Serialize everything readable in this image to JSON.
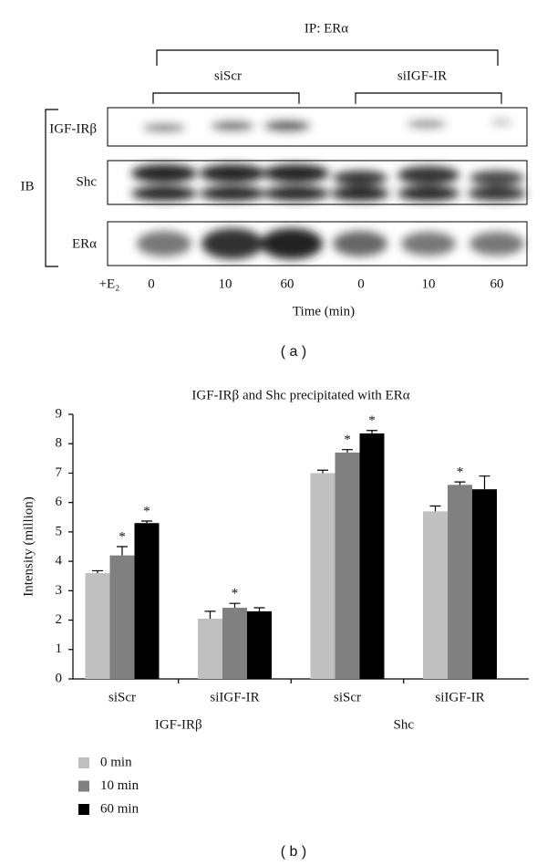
{
  "blot": {
    "ip_label": "IP: ERα",
    "groups": [
      "siScr",
      "siIGF-IR"
    ],
    "ib_label": "IB",
    "rows": [
      "IGF-IRβ",
      "Shc",
      "ERα"
    ],
    "treatment_label": "+E₂",
    "lanes": [
      "0",
      "10",
      "60",
      "0",
      "10",
      "60"
    ],
    "x_label": "Time (min)",
    "panel_label": "( a )"
  },
  "chart_data": {
    "type": "bar",
    "title": "IGF-IRβ and Shc precipitated with ERα",
    "panel_label": "( b )",
    "y_label": "Intensity (million)",
    "categories": [
      "siScr",
      "siIGF-IR",
      "siScr",
      "siIGF-IR"
    ],
    "group_labels": [
      "IGF-IRβ",
      "Shc"
    ],
    "series": [
      {
        "name": "0 min",
        "color": "#c0c0c0",
        "values": [
          3.6,
          2.05,
          7.0,
          5.7
        ],
        "errors": [
          0.08,
          0.25,
          0.1,
          0.18
        ],
        "significance_labels": [
          null,
          null,
          null,
          null
        ]
      },
      {
        "name": "10 min",
        "color": "#808080",
        "values": [
          4.2,
          2.42,
          7.7,
          6.6
        ],
        "errors": [
          0.3,
          0.15,
          0.1,
          0.1
        ],
        "significance_labels": [
          "*",
          "*",
          "*",
          "*"
        ]
      },
      {
        "name": "60 min",
        "color": "#000000",
        "values": [
          5.3,
          2.3,
          8.35,
          6.45
        ],
        "errors": [
          0.07,
          0.12,
          0.1,
          0.45
        ],
        "significance_labels": [
          "*",
          null,
          "*",
          null
        ]
      }
    ],
    "ylim": [
      0,
      9
    ],
    "yticks": [
      0,
      1,
      2,
      3,
      4,
      5,
      6,
      7,
      8,
      9
    ],
    "legend": "bottom-left"
  }
}
